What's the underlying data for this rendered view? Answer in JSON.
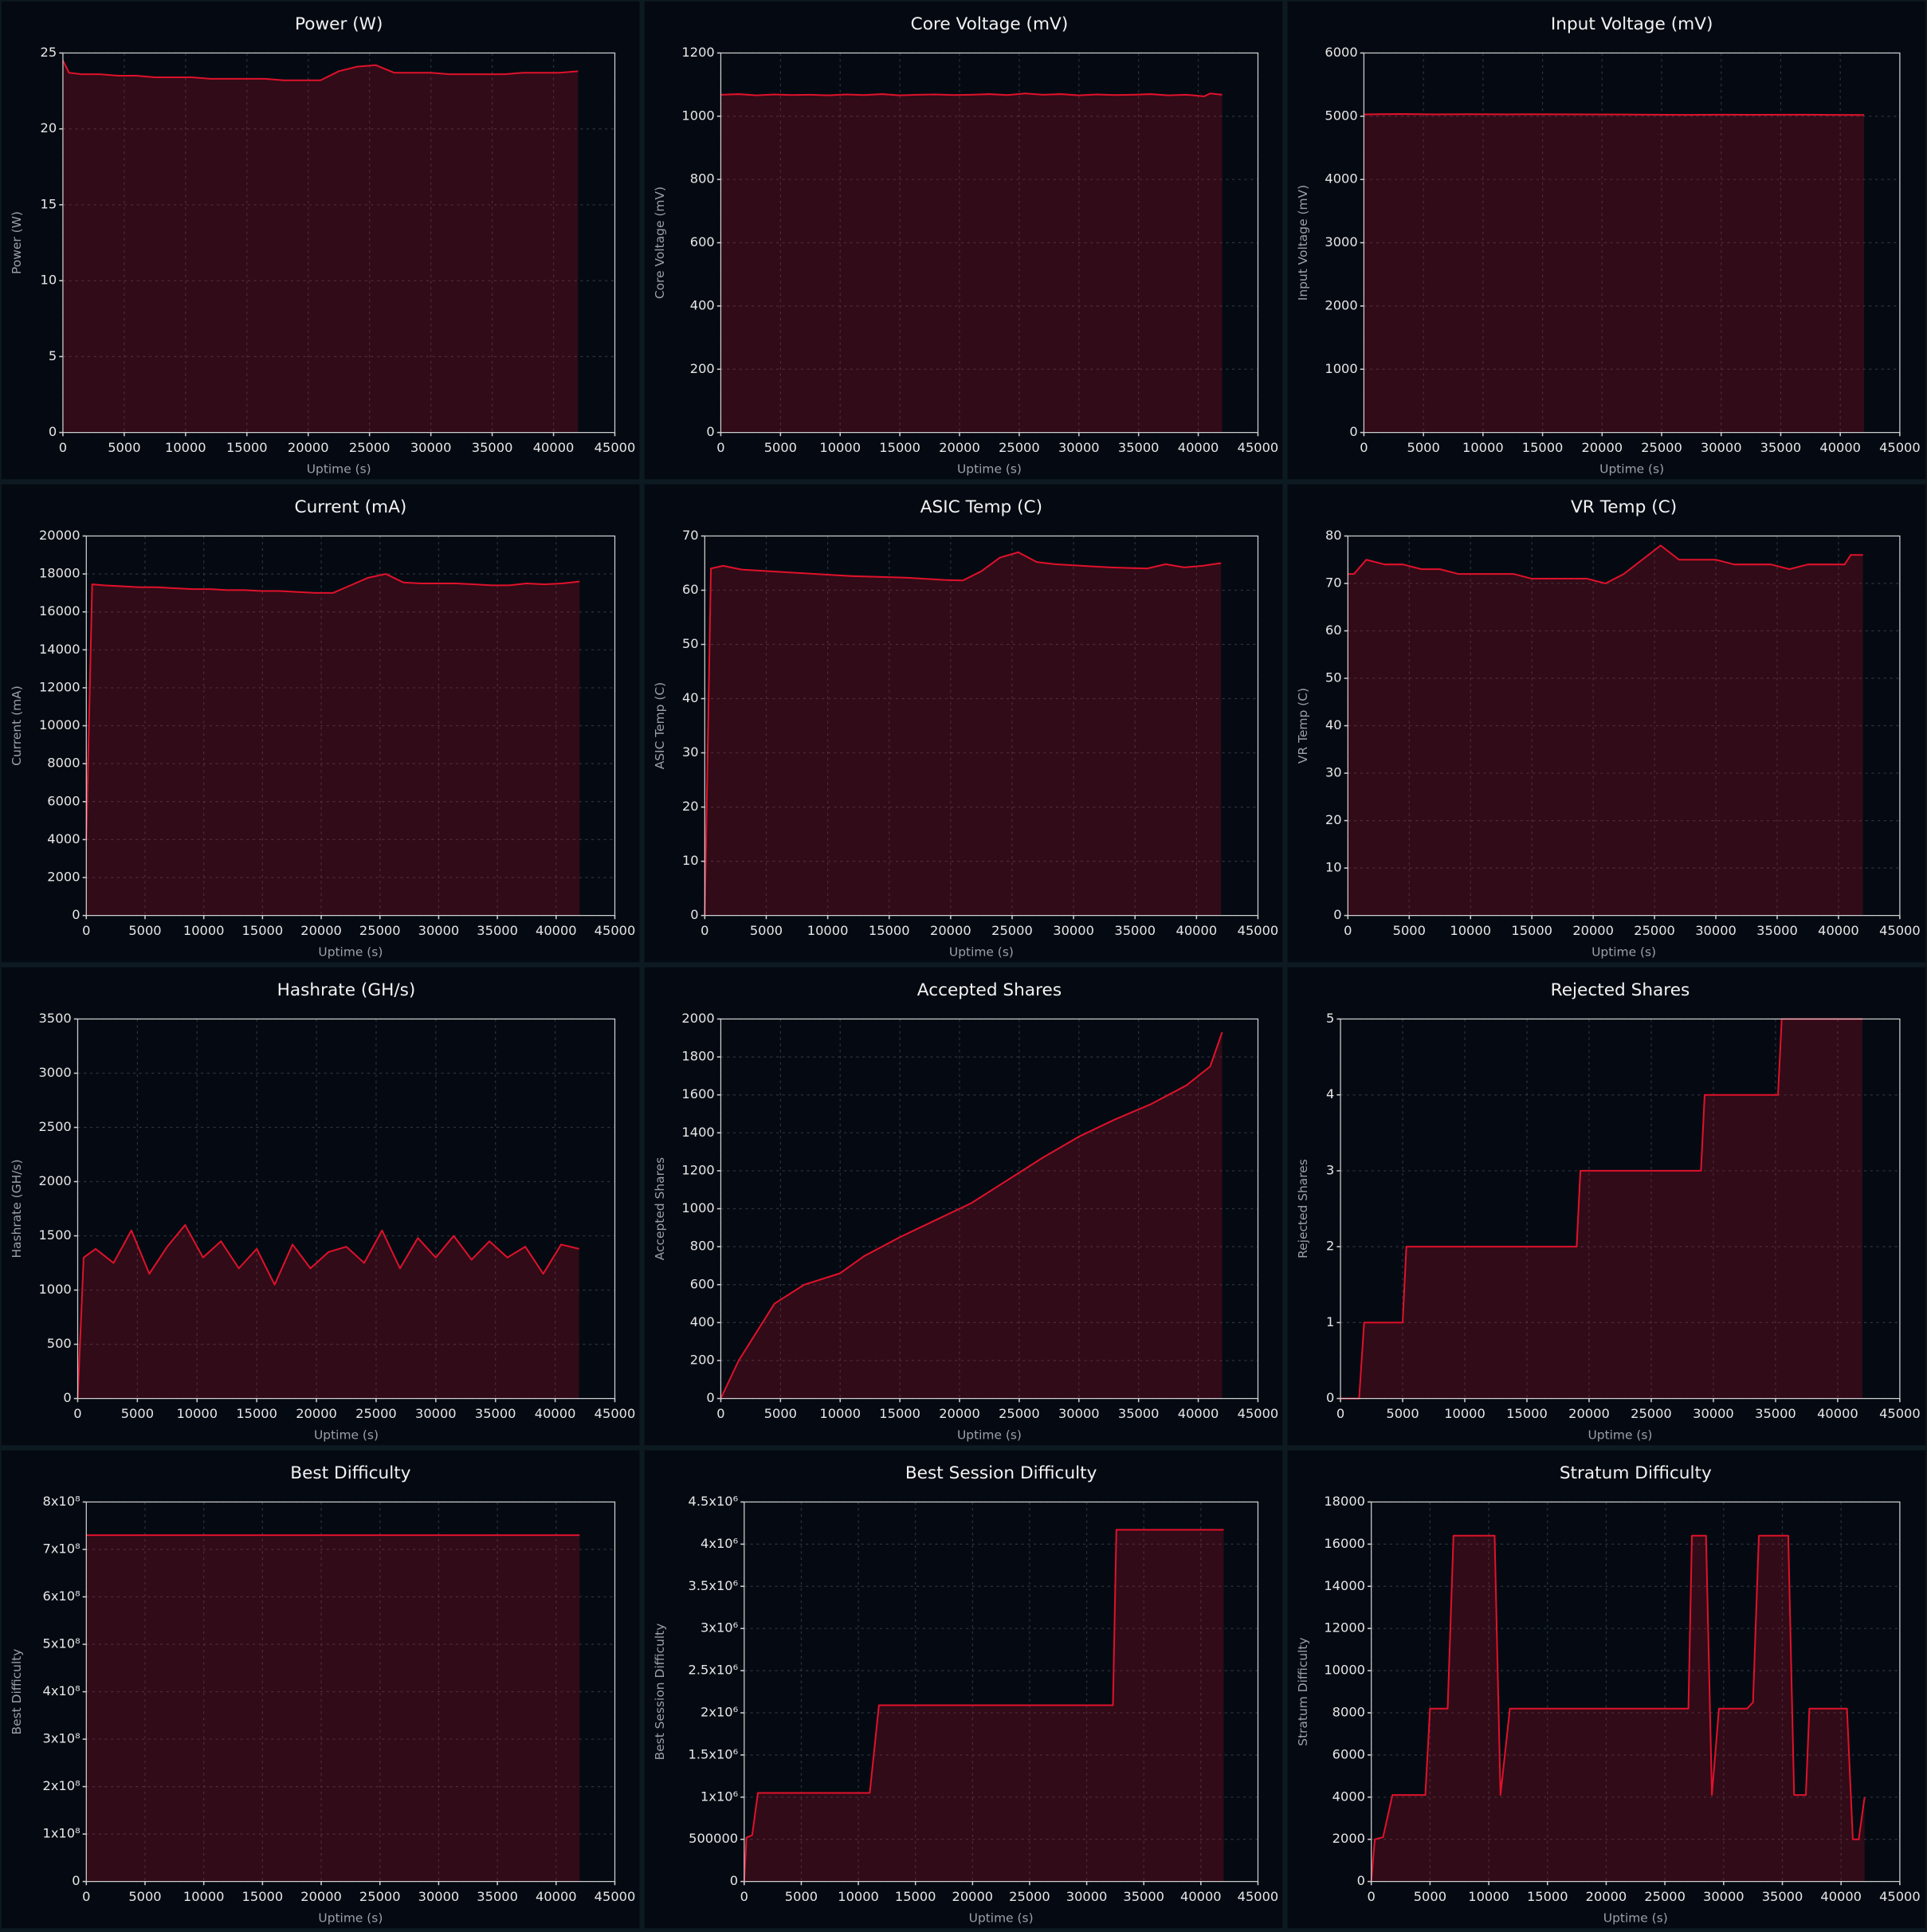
{
  "chart_data": [
    {
      "type": "line",
      "title": "Power (W)",
      "x_label": "Uptime (s)",
      "y_label": "Power (W)",
      "color": "#e0112b",
      "x": [
        0,
        500,
        1500,
        3000,
        4500,
        6000,
        7500,
        9000,
        10500,
        12000,
        13500,
        15000,
        16500,
        18000,
        19500,
        21000,
        22500,
        24000,
        25500,
        27000,
        28500,
        30000,
        31500,
        33000,
        34500,
        36000,
        37500,
        39000,
        40500,
        42000
      ],
      "values": [
        24.5,
        23.7,
        23.6,
        23.6,
        23.5,
        23.5,
        23.4,
        23.4,
        23.4,
        23.3,
        23.3,
        23.3,
        23.3,
        23.2,
        23.2,
        23.2,
        23.8,
        24.1,
        24.2,
        23.7,
        23.7,
        23.7,
        23.6,
        23.6,
        23.6,
        23.6,
        23.7,
        23.7,
        23.7,
        23.8
      ],
      "xlim": [
        0,
        45000
      ],
      "xticks": [
        0,
        5000,
        10000,
        15000,
        20000,
        25000,
        30000,
        35000,
        40000,
        45000
      ],
      "ylim": [
        0,
        25
      ],
      "yticks": [
        0,
        5,
        10,
        15,
        20,
        25
      ],
      "grid": true
    },
    {
      "type": "line",
      "title": "Core Voltage (mV)",
      "x_label": "Uptime (s)",
      "y_label": "Core Voltage (mV)",
      "color": "#e0112b",
      "x": [
        0,
        1500,
        3000,
        4500,
        6000,
        7500,
        9000,
        10500,
        12000,
        13500,
        15000,
        16500,
        18000,
        19500,
        21000,
        22500,
        24000,
        25500,
        27000,
        28500,
        30000,
        31500,
        33000,
        34500,
        36000,
        37500,
        39000,
        40500,
        41000,
        42000
      ],
      "values": [
        1068,
        1070,
        1066,
        1069,
        1067,
        1068,
        1066,
        1069,
        1067,
        1070,
        1066,
        1068,
        1069,
        1067,
        1068,
        1070,
        1067,
        1072,
        1068,
        1070,
        1066,
        1069,
        1067,
        1068,
        1070,
        1066,
        1068,
        1063,
        1072,
        1068
      ],
      "xlim": [
        0,
        45000
      ],
      "xticks": [
        0,
        5000,
        10000,
        15000,
        20000,
        25000,
        30000,
        35000,
        40000,
        45000
      ],
      "ylim": [
        0,
        1200
      ],
      "yticks": [
        0,
        200,
        400,
        600,
        800,
        1000,
        1200
      ],
      "grid": true
    },
    {
      "type": "line",
      "title": "Input Voltage (mV)",
      "x_label": "Uptime (s)",
      "y_label": "Input Voltage (mV)",
      "color": "#e0112b",
      "x": [
        0,
        3000,
        6000,
        9000,
        12000,
        15000,
        18000,
        21000,
        24000,
        27000,
        30000,
        33000,
        36000,
        39000,
        42000
      ],
      "values": [
        5030,
        5035,
        5030,
        5032,
        5030,
        5031,
        5030,
        5028,
        5025,
        5022,
        5025,
        5023,
        5024,
        5022,
        5020
      ],
      "xlim": [
        0,
        45000
      ],
      "xticks": [
        0,
        5000,
        10000,
        15000,
        20000,
        25000,
        30000,
        35000,
        40000,
        45000
      ],
      "ylim": [
        0,
        6000
      ],
      "yticks": [
        0,
        1000,
        2000,
        3000,
        4000,
        5000,
        6000
      ],
      "grid": true
    },
    {
      "type": "line",
      "title": "Current (mA)",
      "x_label": "Uptime (s)",
      "y_label": "Current (mA)",
      "color": "#e0112b",
      "x": [
        0,
        500,
        1500,
        3000,
        4500,
        6000,
        7500,
        9000,
        10500,
        12000,
        13500,
        15000,
        16500,
        18000,
        19500,
        21000,
        22500,
        24000,
        25500,
        27000,
        28500,
        30000,
        31500,
        33000,
        34500,
        36000,
        37500,
        39000,
        40500,
        42000
      ],
      "values": [
        4000,
        17450,
        17400,
        17350,
        17300,
        17300,
        17250,
        17200,
        17200,
        17150,
        17150,
        17100,
        17100,
        17050,
        17000,
        17000,
        17400,
        17800,
        18000,
        17550,
        17500,
        17500,
        17500,
        17450,
        17400,
        17400,
        17500,
        17450,
        17500,
        17600
      ],
      "xlim": [
        0,
        45000
      ],
      "xticks": [
        0,
        5000,
        10000,
        15000,
        20000,
        25000,
        30000,
        35000,
        40000,
        45000
      ],
      "ylim": [
        0,
        20000
      ],
      "yticks": [
        0,
        2000,
        4000,
        6000,
        8000,
        10000,
        12000,
        14000,
        16000,
        18000,
        20000
      ],
      "grid": true
    },
    {
      "type": "line",
      "title": "ASIC Temp (C)",
      "x_label": "Uptime (s)",
      "y_label": "ASIC Temp (C)",
      "color": "#e0112b",
      "x": [
        0,
        500,
        1500,
        3000,
        4500,
        6000,
        7500,
        9000,
        10500,
        12000,
        13500,
        15000,
        16500,
        18000,
        19500,
        21000,
        22500,
        24000,
        25500,
        27000,
        28500,
        30000,
        31500,
        33000,
        34500,
        36000,
        37500,
        39000,
        40500,
        42000
      ],
      "values": [
        0,
        64,
        64.5,
        63.8,
        63.6,
        63.4,
        63.2,
        63,
        62.8,
        62.6,
        62.5,
        62.4,
        62.3,
        62.1,
        61.9,
        61.8,
        63.5,
        66,
        67,
        65.2,
        64.8,
        64.6,
        64.4,
        64.2,
        64.1,
        64,
        64.8,
        64.2,
        64.5,
        65
      ],
      "xlim": [
        0,
        45000
      ],
      "xticks": [
        0,
        5000,
        10000,
        15000,
        20000,
        25000,
        30000,
        35000,
        40000,
        45000
      ],
      "ylim": [
        0,
        70
      ],
      "yticks": [
        0,
        10,
        20,
        30,
        40,
        50,
        60,
        70
      ],
      "grid": true
    },
    {
      "type": "line",
      "title": "VR Temp (C)",
      "x_label": "Uptime (s)",
      "y_label": "VR Temp (C)",
      "color": "#e0112b",
      "x": [
        0,
        500,
        1500,
        3000,
        4500,
        6000,
        7500,
        9000,
        10500,
        12000,
        13500,
        15000,
        16500,
        18000,
        19500,
        21000,
        22500,
        24000,
        25500,
        27000,
        28500,
        30000,
        31500,
        33000,
        34500,
        36000,
        37500,
        39000,
        40500,
        41000,
        42000
      ],
      "values": [
        72,
        72,
        75,
        74,
        74,
        73,
        73,
        72,
        72,
        72,
        72,
        71,
        71,
        71,
        71,
        70,
        72,
        75,
        78,
        75,
        75,
        75,
        74,
        74,
        74,
        73,
        74,
        74,
        74,
        76,
        76
      ],
      "xlim": [
        0,
        45000
      ],
      "xticks": [
        0,
        5000,
        10000,
        15000,
        20000,
        25000,
        30000,
        35000,
        40000,
        45000
      ],
      "ylim": [
        0,
        80
      ],
      "yticks": [
        0,
        10,
        20,
        30,
        40,
        50,
        60,
        70,
        80
      ],
      "grid": true
    },
    {
      "type": "line",
      "title": "Hashrate (GH/s)",
      "x_label": "Uptime (s)",
      "y_label": "Hashrate (GH/s)",
      "color": "#e0112b",
      "x": [
        0,
        500,
        1500,
        3000,
        4500,
        6000,
        7500,
        9000,
        10500,
        12000,
        13500,
        15000,
        16500,
        18000,
        19500,
        21000,
        22500,
        24000,
        25500,
        27000,
        28500,
        30000,
        31500,
        33000,
        34500,
        36000,
        37500,
        39000,
        40500,
        42000
      ],
      "values": [
        0,
        1300,
        1380,
        1250,
        1550,
        1150,
        1400,
        1600,
        1300,
        1450,
        1200,
        1380,
        1050,
        1420,
        1200,
        1350,
        1400,
        1250,
        1550,
        1200,
        1480,
        1300,
        1500,
        1280,
        1450,
        1300,
        1400,
        1150,
        1420,
        1380
      ],
      "xlim": [
        0,
        45000
      ],
      "xticks": [
        0,
        5000,
        10000,
        15000,
        20000,
        25000,
        30000,
        35000,
        40000,
        45000
      ],
      "ylim": [
        0,
        3500
      ],
      "yticks": [
        0,
        500,
        1000,
        1500,
        2000,
        2500,
        3000,
        3500
      ],
      "grid": true
    },
    {
      "type": "line",
      "title": "Accepted Shares",
      "x_label": "Uptime (s)",
      "y_label": "Accepted Shares",
      "color": "#e0112b",
      "x": [
        0,
        1500,
        3000,
        4500,
        7000,
        10000,
        12000,
        15000,
        18000,
        21000,
        24000,
        27000,
        30000,
        33000,
        36000,
        39000,
        41000,
        42000
      ],
      "values": [
        0,
        200,
        350,
        500,
        600,
        660,
        750,
        850,
        940,
        1030,
        1150,
        1270,
        1380,
        1470,
        1550,
        1650,
        1750,
        1930
      ],
      "xlim": [
        0,
        45000
      ],
      "xticks": [
        0,
        5000,
        10000,
        15000,
        20000,
        25000,
        30000,
        35000,
        40000,
        45000
      ],
      "ylim": [
        0,
        2000
      ],
      "yticks": [
        0,
        200,
        400,
        600,
        800,
        1000,
        1200,
        1400,
        1600,
        1800,
        2000
      ],
      "grid": true
    },
    {
      "type": "line",
      "title": "Rejected Shares",
      "x_label": "Uptime (s)",
      "y_label": "Rejected Shares",
      "color": "#e0112b",
      "x": [
        0,
        1500,
        1900,
        5000,
        5300,
        19000,
        19300,
        29000,
        29300,
        35200,
        35500,
        42000
      ],
      "values": [
        0,
        0,
        1,
        1,
        2,
        2,
        3,
        3,
        4,
        4,
        5,
        5
      ],
      "xlim": [
        0,
        45000
      ],
      "xticks": [
        0,
        5000,
        10000,
        15000,
        20000,
        25000,
        30000,
        35000,
        40000,
        45000
      ],
      "ylim": [
        0,
        5
      ],
      "yticks": [
        0,
        1,
        2,
        3,
        4,
        5
      ],
      "grid": true
    },
    {
      "type": "line",
      "title": "Best Difficulty",
      "x_label": "Uptime (s)",
      "y_label": "Best Difficulty",
      "color": "#e0112b",
      "x": [
        0,
        42000
      ],
      "values": [
        730000000,
        730000000
      ],
      "xlim": [
        0,
        45000
      ],
      "xticks": [
        0,
        5000,
        10000,
        15000,
        20000,
        25000,
        30000,
        35000,
        40000,
        45000
      ],
      "ylim": [
        0,
        800000000
      ],
      "yticks": [
        0,
        {
          "value": 100000000,
          "label": "1x10⁸"
        },
        {
          "value": 200000000,
          "label": "2x10⁸"
        },
        {
          "value": 300000000,
          "label": "3x10⁸"
        },
        {
          "value": 400000000,
          "label": "4x10⁸"
        },
        {
          "value": 500000000,
          "label": "5x10⁸"
        },
        {
          "value": 600000000,
          "label": "6x10⁸"
        },
        {
          "value": 700000000,
          "label": "7x10⁸"
        },
        {
          "value": 800000000,
          "label": "8x10⁸"
        }
      ],
      "grid": true
    },
    {
      "type": "line",
      "title": "Best Session Difficulty",
      "x_label": "Uptime (s)",
      "y_label": "Best Session Difficulty",
      "color": "#e0112b",
      "x": [
        0,
        200,
        700,
        1200,
        11000,
        11800,
        32300,
        32600,
        42000
      ],
      "values": [
        0,
        520000,
        550000,
        1050000,
        1050000,
        2090000,
        2090000,
        4170000,
        4170000
      ],
      "xlim": [
        0,
        45000
      ],
      "xticks": [
        0,
        5000,
        10000,
        15000,
        20000,
        25000,
        30000,
        35000,
        40000,
        45000
      ],
      "ylim": [
        0,
        4500000
      ],
      "yticks": [
        0,
        500000,
        {
          "value": 1000000,
          "label": "1x10⁶"
        },
        {
          "value": 1500000,
          "label": "1.5x10⁶"
        },
        {
          "value": 2000000,
          "label": "2x10⁶"
        },
        {
          "value": 2500000,
          "label": "2.5x10⁶"
        },
        {
          "value": 3000000,
          "label": "3x10⁶"
        },
        {
          "value": 3500000,
          "label": "3.5x10⁶"
        },
        {
          "value": 4000000,
          "label": "4x10⁶"
        },
        {
          "value": 4500000,
          "label": "4.5x10⁶"
        }
      ],
      "grid": true
    },
    {
      "type": "line",
      "title": "Stratum Difficulty",
      "x_label": "Uptime (s)",
      "y_label": "Stratum Difficulty",
      "color": "#e0112b",
      "x": [
        0,
        300,
        1000,
        1800,
        4600,
        5000,
        6500,
        7000,
        10500,
        11000,
        11800,
        27000,
        27300,
        28500,
        29000,
        29600,
        32000,
        32500,
        33000,
        35500,
        36000,
        37000,
        37300,
        40500,
        41000,
        41500,
        42000
      ],
      "values": [
        0,
        2000,
        2100,
        4100,
        4100,
        8200,
        8200,
        16400,
        16400,
        4100,
        8200,
        8200,
        16400,
        16400,
        4100,
        8200,
        8200,
        8500,
        16400,
        16400,
        4100,
        4100,
        8200,
        8200,
        2000,
        2000,
        4000
      ],
      "xlim": [
        0,
        45000
      ],
      "xticks": [
        0,
        5000,
        10000,
        15000,
        20000,
        25000,
        30000,
        35000,
        40000,
        45000
      ],
      "ylim": [
        0,
        18000
      ],
      "yticks": [
        0,
        2000,
        4000,
        6000,
        8000,
        10000,
        12000,
        14000,
        16000,
        18000
      ],
      "grid": true
    }
  ]
}
